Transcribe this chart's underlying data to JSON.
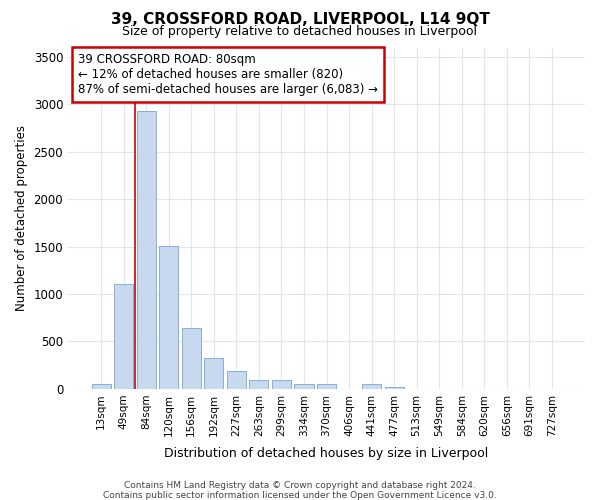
{
  "title": "39, CROSSFORD ROAD, LIVERPOOL, L14 9QT",
  "subtitle": "Size of property relative to detached houses in Liverpool",
  "xlabel": "Distribution of detached houses by size in Liverpool",
  "ylabel": "Number of detached properties",
  "categories": [
    "13sqm",
    "49sqm",
    "84sqm",
    "120sqm",
    "156sqm",
    "192sqm",
    "227sqm",
    "263sqm",
    "299sqm",
    "334sqm",
    "370sqm",
    "406sqm",
    "441sqm",
    "477sqm",
    "513sqm",
    "549sqm",
    "584sqm",
    "620sqm",
    "656sqm",
    "691sqm",
    "727sqm"
  ],
  "bar_heights": [
    50,
    1110,
    2930,
    1510,
    640,
    330,
    185,
    90,
    90,
    50,
    50,
    0,
    50,
    20,
    0,
    0,
    0,
    0,
    0,
    0,
    0
  ],
  "bar_color": "#c8d9ef",
  "bar_edge_color": "#8aafd4",
  "ylim": [
    0,
    3600
  ],
  "yticks": [
    0,
    500,
    1000,
    1500,
    2000,
    2500,
    3000,
    3500
  ],
  "annotation_line1": "39 CROSSFORD ROAD: 80sqm",
  "annotation_line2": "← 12% of detached houses are smaller (820)",
  "annotation_line3": "87% of semi-detached houses are larger (6,083) →",
  "annotation_box_edge_color": "#cc0000",
  "red_line_x": 1.5,
  "footer_line1": "Contains HM Land Registry data © Crown copyright and database right 2024.",
  "footer_line2": "Contains public sector information licensed under the Open Government Licence v3.0.",
  "background_color": "#ffffff",
  "grid_color": "#e0e5ef"
}
